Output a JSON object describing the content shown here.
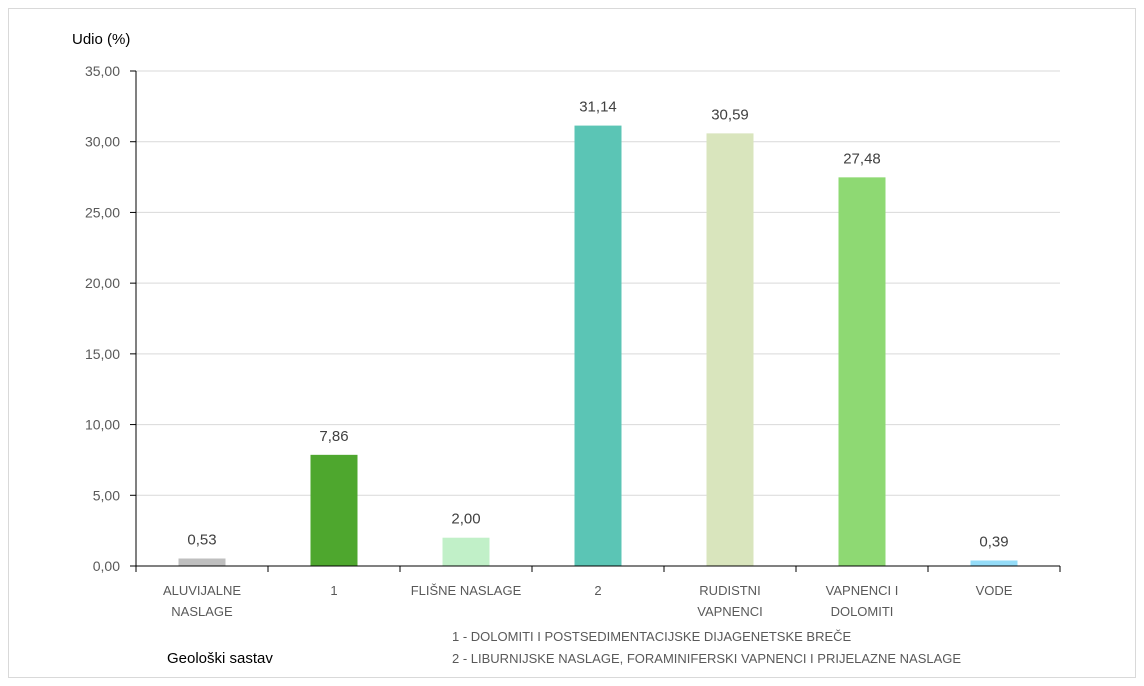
{
  "chart_data": {
    "type": "bar",
    "ylabel": "Udio (%)",
    "xlabel": "Geološki sastav",
    "ylim": [
      0,
      35
    ],
    "yticks": [
      "0,00",
      "5,00",
      "10,00",
      "15,00",
      "20,00",
      "25,00",
      "30,00",
      "35,00"
    ],
    "ytick_values": [
      0,
      5,
      10,
      15,
      20,
      25,
      30,
      35
    ],
    "grid": true,
    "categories": [
      [
        "ALUVIJALNE",
        "NASLAGE"
      ],
      [
        "1"
      ],
      [
        "FLIŠNE NASLAGE"
      ],
      [
        "2"
      ],
      [
        "RUDISTNI",
        "VAPNENCI"
      ],
      [
        "VAPNENCI I",
        "DOLOMITI"
      ],
      [
        "VODE"
      ]
    ],
    "values": [
      0.53,
      7.86,
      2.0,
      31.14,
      30.59,
      27.48,
      0.39
    ],
    "value_labels": [
      "0,53",
      "7,86",
      "2,00",
      "31,14",
      "30,59",
      "27,48",
      "0,39"
    ],
    "bar_colors": [
      "#bfbfbf",
      "#4ea72e",
      "#c1f0c8",
      "#5bc5b5",
      "#d9e5bd",
      "#8ed973",
      "#94dcf8"
    ],
    "footnotes": [
      "1 -  DOLOMITI I POSTSEDIMENTACIJSKE DIJAGENETSKE BREČE",
      "2 -  LIBURNIJSKE NASLAGE, FORAMINIFERSKI VAPNENCI I PRIJELAZNE NASLAGE"
    ]
  }
}
